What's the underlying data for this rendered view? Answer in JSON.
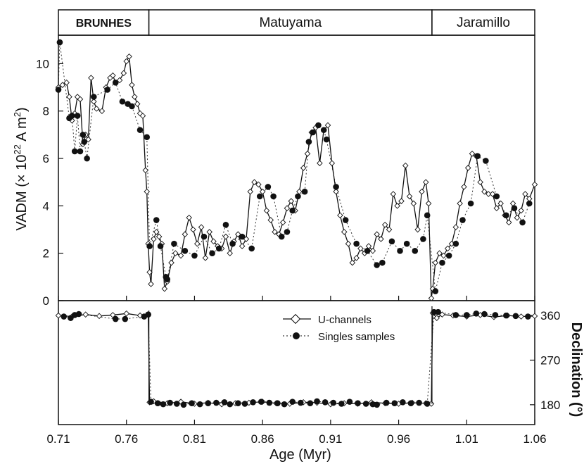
{
  "chart_data": {
    "type": "line",
    "xlabel": "Age (Myr)",
    "x_ticks": [
      "0.71",
      "0.76",
      "0.81",
      "0.86",
      "0.91",
      "0.96",
      "1.01",
      "1.06"
    ],
    "xlim": [
      0.71,
      1.06
    ],
    "chrons": [
      {
        "name": "BRUNHES",
        "start": 0.71,
        "end": 0.7765
      },
      {
        "name": "Matuyama",
        "start": 0.7765,
        "end": 0.9845
      },
      {
        "name": "Jaramillo",
        "start": 0.9845,
        "end": 1.06
      }
    ],
    "legend": {
      "u_channels": "U-channels",
      "singles": "Singles  samples"
    },
    "top_panel": {
      "ylabel_main": "VADM (× 10",
      "ylabel_exp": "22",
      "ylabel_unit": " A m",
      "ylabel_exp2": "2",
      "ylabel_close": ")",
      "ylim": [
        0,
        11.2
      ],
      "y_ticks": [
        "0",
        "2",
        "4",
        "6",
        "8",
        "10"
      ],
      "series": [
        {
          "name": "U-channels",
          "x": [
            0.71,
            0.713,
            0.716,
            0.718,
            0.72,
            0.722,
            0.724,
            0.726,
            0.728,
            0.73,
            0.732,
            0.734,
            0.736,
            0.738,
            0.742,
            0.745,
            0.748,
            0.75,
            0.752,
            0.755,
            0.758,
            0.76,
            0.762,
            0.764,
            0.766,
            0.768,
            0.77,
            0.772,
            0.774,
            0.775,
            0.776,
            0.777,
            0.778,
            0.78,
            0.782,
            0.784,
            0.786,
            0.788,
            0.79,
            0.793,
            0.796,
            0.8,
            0.803,
            0.806,
            0.809,
            0.812,
            0.815,
            0.818,
            0.821,
            0.824,
            0.827,
            0.83,
            0.833,
            0.836,
            0.839,
            0.842,
            0.845,
            0.848,
            0.851,
            0.854,
            0.857,
            0.86,
            0.863,
            0.866,
            0.869,
            0.872,
            0.875,
            0.878,
            0.881,
            0.884,
            0.887,
            0.89,
            0.893,
            0.896,
            0.899,
            0.902,
            0.905,
            0.908,
            0.911,
            0.914,
            0.917,
            0.92,
            0.923,
            0.926,
            0.929,
            0.932,
            0.935,
            0.938,
            0.941,
            0.944,
            0.947,
            0.95,
            0.953,
            0.956,
            0.959,
            0.962,
            0.965,
            0.968,
            0.971,
            0.974,
            0.977,
            0.98,
            0.982,
            0.984,
            0.985,
            0.987,
            0.99,
            0.993,
            0.996,
            0.999,
            1.002,
            1.005,
            1.008,
            1.011,
            1.014,
            1.017,
            1.02,
            1.023,
            1.026,
            1.029,
            1.032,
            1.035,
            1.038,
            1.041,
            1.044,
            1.047,
            1.05,
            1.053,
            1.056,
            1.06
          ],
          "y": [
            9.0,
            9.1,
            9.2,
            8.6,
            7.6,
            7.9,
            8.6,
            8.5,
            6.6,
            7.0,
            6.8,
            9.4,
            8.4,
            8.1,
            8.0,
            9.0,
            9.4,
            9.5,
            9.2,
            9.3,
            9.6,
            10.1,
            10.3,
            9.1,
            8.6,
            8.3,
            7.9,
            7.8,
            5.5,
            4.6,
            2.4,
            1.2,
            0.7,
            2.6,
            2.9,
            2.7,
            2.4,
            0.5,
            0.8,
            1.6,
            2.0,
            1.9,
            2.8,
            3.5,
            3.0,
            2.4,
            3.1,
            1.8,
            2.9,
            2.5,
            2.3,
            2.2,
            2.7,
            2.0,
            2.5,
            2.8,
            2.3,
            2.6,
            4.6,
            5.0,
            4.9,
            4.6,
            3.8,
            3.4,
            2.9,
            2.8,
            3.3,
            3.9,
            4.2,
            3.8,
            4.6,
            5.6,
            6.2,
            7.1,
            7.3,
            5.8,
            7.2,
            7.4,
            5.8,
            4.6,
            3.6,
            2.9,
            2.4,
            1.6,
            1.8,
            2.2,
            2.0,
            2.3,
            2.1,
            2.8,
            2.6,
            3.2,
            3.0,
            4.5,
            4.0,
            4.2,
            5.7,
            4.4,
            4.1,
            3.0,
            4.6,
            5.0,
            4.1,
            0.1,
            0.5,
            1.6,
            2.0,
            1.9,
            2.2,
            2.4,
            3.1,
            4.1,
            4.8,
            5.6,
            6.2,
            6.1,
            5.0,
            4.6,
            4.5,
            4.5,
            3.9,
            4.1,
            3.6,
            3.3,
            4.1,
            3.5,
            3.8,
            4.5,
            4.3,
            4.9
          ]
        },
        {
          "name": "Singles  samples",
          "x": [
            0.71,
            0.711,
            0.718,
            0.72,
            0.722,
            0.724,
            0.726,
            0.728,
            0.729,
            0.731,
            0.736,
            0.746,
            0.752,
            0.757,
            0.761,
            0.764,
            0.77,
            0.775,
            0.777,
            0.782,
            0.785,
            0.789,
            0.79,
            0.795,
            0.803,
            0.81,
            0.817,
            0.823,
            0.828,
            0.833,
            0.838,
            0.845,
            0.852,
            0.858,
            0.864,
            0.868,
            0.874,
            0.878,
            0.882,
            0.886,
            0.891,
            0.894,
            0.897,
            0.901,
            0.905,
            0.907,
            0.914,
            0.921,
            0.929,
            0.937,
            0.944,
            0.948,
            0.955,
            0.961,
            0.966,
            0.972,
            0.978,
            0.981,
            0.987,
            0.992,
            0.997,
            1.002,
            1.007,
            1.013,
            1.018,
            1.024,
            1.032,
            1.039,
            1.045,
            1.051,
            1.056
          ],
          "y": [
            8.9,
            10.9,
            7.7,
            7.8,
            6.3,
            7.8,
            6.3,
            7.0,
            6.7,
            6.0,
            8.6,
            8.9,
            9.2,
            8.4,
            8.3,
            8.2,
            7.2,
            6.9,
            2.3,
            3.4,
            2.3,
            1.0,
            0.9,
            2.4,
            2.1,
            1.9,
            2.7,
            2.0,
            2.2,
            3.2,
            2.4,
            2.7,
            2.2,
            4.4,
            4.8,
            4.4,
            2.7,
            2.9,
            3.8,
            4.4,
            4.6,
            6.7,
            7.1,
            7.4,
            7.2,
            6.8,
            4.8,
            3.4,
            2.4,
            2.1,
            1.5,
            1.6,
            2.5,
            2.1,
            2.4,
            2.1,
            2.6,
            3.6,
            0.4,
            1.6,
            1.9,
            2.4,
            3.4,
            4.1,
            6.1,
            5.9,
            4.4,
            3.6,
            3.9,
            3.3,
            4.1
          ]
        }
      ]
    },
    "bottom_panel": {
      "ylabel": "Declination  (°)",
      "ylim": [
        140,
        390
      ],
      "y_ticks": [
        "180",
        "270",
        "360"
      ],
      "series": [
        {
          "name": "U-channels",
          "x": [
            0.71,
            0.72,
            0.73,
            0.74,
            0.75,
            0.76,
            0.77,
            0.776,
            0.777,
            0.78,
            0.79,
            0.8,
            0.81,
            0.82,
            0.83,
            0.84,
            0.85,
            0.86,
            0.87,
            0.88,
            0.89,
            0.9,
            0.91,
            0.92,
            0.93,
            0.94,
            0.95,
            0.96,
            0.97,
            0.98,
            0.984,
            0.985,
            0.988,
            0.992,
            1.0,
            1.01,
            1.02,
            1.03,
            1.04,
            1.05,
            1.06
          ],
          "y": [
            360,
            358,
            362,
            359,
            361,
            364,
            360,
            362,
            185,
            187,
            183,
            186,
            182,
            184,
            181,
            183,
            184,
            186,
            183,
            182,
            185,
            184,
            181,
            183,
            182,
            185,
            183,
            182,
            184,
            183,
            182,
            365,
            355,
            362,
            360,
            358,
            361,
            357,
            360,
            358,
            359
          ]
        },
        {
          "name": "Singles  samples",
          "x": [
            0.714,
            0.719,
            0.722,
            0.725,
            0.752,
            0.759,
            0.773,
            0.776,
            0.778,
            0.783,
            0.787,
            0.792,
            0.797,
            0.802,
            0.808,
            0.814,
            0.82,
            0.826,
            0.832,
            0.836,
            0.842,
            0.847,
            0.853,
            0.859,
            0.865,
            0.871,
            0.876,
            0.882,
            0.888,
            0.895,
            0.9,
            0.906,
            0.912,
            0.918,
            0.924,
            0.93,
            0.936,
            0.941,
            0.944,
            0.951,
            0.957,
            0.963,
            0.969,
            0.975,
            0.981,
            0.986,
            0.989,
            1.002,
            1.01,
            1.017,
            1.023,
            1.031,
            1.039,
            1.046,
            1.055
          ],
          "y": [
            358,
            355,
            361,
            363,
            353,
            353,
            358,
            362,
            186,
            183,
            181,
            184,
            182,
            180,
            183,
            181,
            183,
            184,
            185,
            181,
            183,
            182,
            185,
            186,
            184,
            183,
            181,
            186,
            184,
            183,
            187,
            185,
            184,
            182,
            186,
            183,
            182,
            181,
            180,
            184,
            183,
            185,
            183,
            184,
            182,
            367,
            367,
            361,
            361,
            364,
            363,
            361,
            360,
            359,
            358
          ]
        }
      ]
    }
  }
}
